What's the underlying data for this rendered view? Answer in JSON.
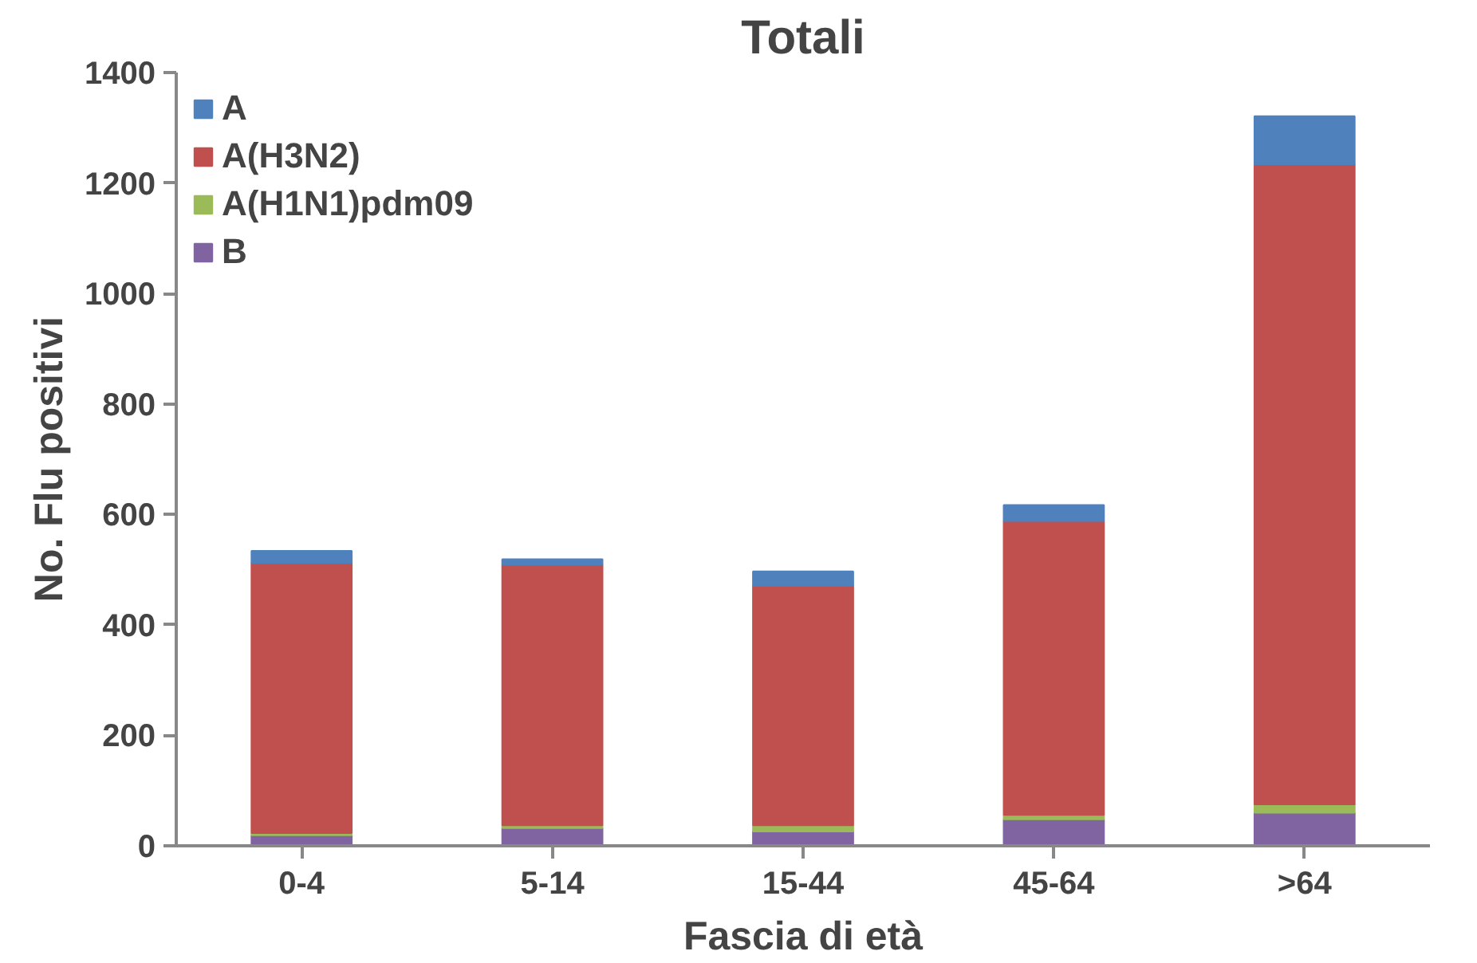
{
  "chart_data": {
    "type": "bar",
    "title": "Totali",
    "xlabel": "Fascia di età",
    "ylabel": "No. Flu positivi",
    "categories": [
      "0-4",
      "5-14",
      "15-44",
      "45-64",
      ">64"
    ],
    "stacked": true,
    "series": [
      {
        "name": "B",
        "color": "#8064a2",
        "values": [
          19,
          32,
          26,
          48,
          60
        ]
      },
      {
        "name": "A(H1N1)pdm09",
        "color": "#9bbb59",
        "values": [
          4,
          5,
          11,
          8,
          15
        ]
      },
      {
        "name": "A(H3N2)",
        "color": "#c0504d",
        "values": [
          489,
          472,
          434,
          532,
          1159
        ]
      },
      {
        "name": "A",
        "color": "#4f81bd",
        "values": [
          22,
          10,
          26,
          29,
          87
        ]
      }
    ],
    "ylim": [
      0,
      1400
    ],
    "yticks": [
      0,
      200,
      400,
      600,
      800,
      1000,
      1200,
      1400
    ],
    "grid": false,
    "legend": "top left"
  }
}
